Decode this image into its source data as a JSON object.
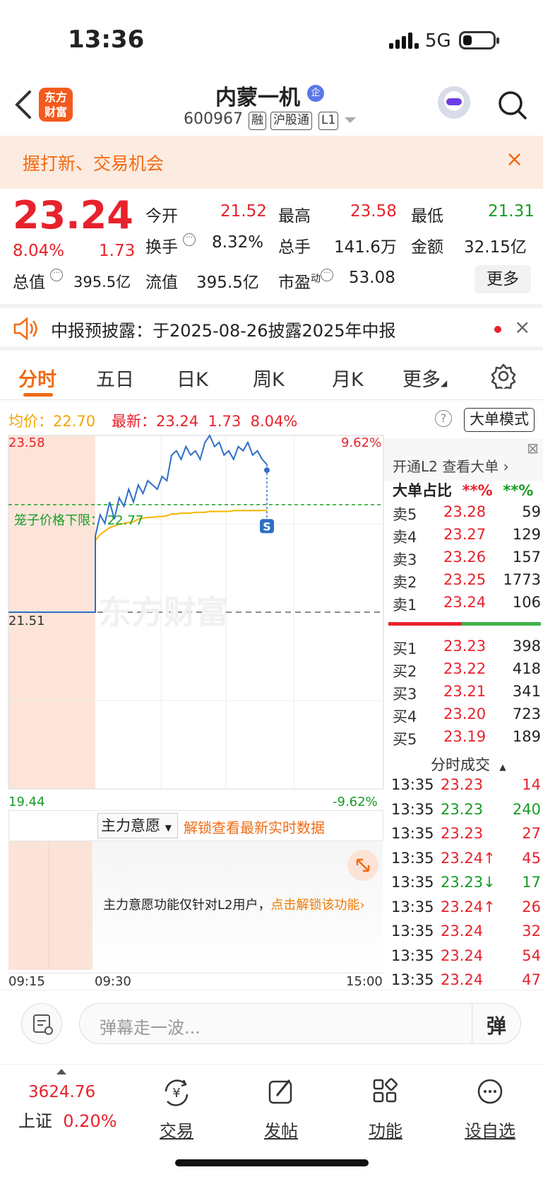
{
  "status_bar": {
    "time": "13:36",
    "network": "5G"
  },
  "header": {
    "logo_line1": "东方",
    "logo_line2": "财富",
    "stock_name": "内蒙一机",
    "badge": "企",
    "stock_code": "600967",
    "tags": [
      "融",
      "沪股通",
      "L1"
    ]
  },
  "banner": {
    "text": "握打新、交易机会",
    "close": "×"
  },
  "quote": {
    "price": "23.24",
    "change_pct": "8.04%",
    "change": "1.73",
    "open_label": "今开",
    "open": "21.52",
    "high_label": "最高",
    "high": "23.58",
    "low_label": "最低",
    "low": "21.31",
    "turnover_label": "换手",
    "turnover": "8.32%",
    "volume_label": "总手",
    "volume": "141.6万",
    "amount_label": "金额",
    "amount": "32.15亿",
    "mktcap_label": "总值",
    "mktcap": "395.5亿",
    "float_label": "流值",
    "float": "395.5亿",
    "pe_label": "市盈",
    "pe_sup": "动",
    "pe": "53.08",
    "more": "更多"
  },
  "notice": {
    "text": "中报预披露：于2025-08-26披露2025年中报",
    "close": "×"
  },
  "tabs": [
    "分时",
    "五日",
    "日K",
    "周K",
    "月K",
    "更多"
  ],
  "avg_bar": {
    "avg_label": "均价：",
    "avg": "22.70",
    "latest_label": "最新：",
    "latest": "23.24",
    "chg": "1.73",
    "pct": "8.04%",
    "mode_btn": "大单模式",
    "help": "?"
  },
  "chart_data": {
    "type": "line",
    "ylim": [
      19.44,
      23.58
    ],
    "ymax_label": "23.58",
    "ymin_label": "19.44",
    "pct_max": "9.62%",
    "pct_min": "-9.62%",
    "prev_close_label": "21.51",
    "cage_label": "笼子价格下限：",
    "cage_value": "22.77",
    "xticks": [
      "09:15",
      "09:30",
      "15:00"
    ],
    "price_series": [
      21.51,
      21.51,
      21.51,
      21.51,
      22.4,
      22.65,
      22.55,
      22.8,
      22.6,
      22.85,
      22.75,
      22.95,
      22.8,
      23.0,
      22.9,
      23.05,
      23.0,
      22.95,
      23.1,
      23.05,
      23.35,
      23.4,
      23.3,
      23.45,
      23.35,
      23.4,
      23.3,
      23.5,
      23.58,
      23.45,
      23.5,
      23.35,
      23.4,
      23.3,
      23.45,
      23.4,
      23.5,
      23.35,
      23.4,
      23.3,
      23.24
    ],
    "avg_series": [
      21.51,
      21.51,
      21.51,
      21.51,
      22.35,
      22.42,
      22.46,
      22.5,
      22.52,
      22.54,
      22.55,
      22.56,
      22.57,
      22.6,
      22.61,
      22.62,
      22.62,
      22.63,
      22.63,
      22.64,
      22.66,
      22.66,
      22.67,
      22.67,
      22.67,
      22.68,
      22.68,
      22.68,
      22.69,
      22.69,
      22.69,
      22.69,
      22.69,
      22.7,
      22.7,
      22.7,
      22.7,
      22.7,
      22.7,
      22.7,
      22.7
    ],
    "marker": "S"
  },
  "sub_chart": {
    "selector": "主力意愿",
    "unlock": "解锁查看最新实时数据",
    "lock_text": "主力意愿功能仅针对L2用户，",
    "lock_link": "点击解锁该功能"
  },
  "order_panel": {
    "l2_link": "开通L2 查看大单",
    "ratio_label": "大单占比",
    "ratio_a": "**%",
    "ratio_b": "**%",
    "asks": [
      {
        "l": "卖5",
        "p": "23.28",
        "v": "59"
      },
      {
        "l": "卖4",
        "p": "23.27",
        "v": "129"
      },
      {
        "l": "卖3",
        "p": "23.26",
        "v": "157"
      },
      {
        "l": "卖2",
        "p": "23.25",
        "v": "1773"
      },
      {
        "l": "卖1",
        "p": "23.24",
        "v": "106"
      }
    ],
    "bids": [
      {
        "l": "买1",
        "p": "23.23",
        "v": "398"
      },
      {
        "l": "买2",
        "p": "23.22",
        "v": "418"
      },
      {
        "l": "买3",
        "p": "23.21",
        "v": "341"
      },
      {
        "l": "买4",
        "p": "23.20",
        "v": "723"
      },
      {
        "l": "买5",
        "p": "23.19",
        "v": "189"
      }
    ],
    "trades_label": "分时成交",
    "trades": [
      {
        "t": "13:35",
        "p": "23.23",
        "v": "14",
        "c": "red"
      },
      {
        "t": "13:35",
        "p": "23.23",
        "v": "240",
        "c": "green"
      },
      {
        "t": "13:35",
        "p": "23.23",
        "v": "27",
        "c": "red"
      },
      {
        "t": "13:35",
        "p": "23.24↑",
        "v": "45",
        "c": "red"
      },
      {
        "t": "13:35",
        "p": "23.23↓",
        "v": "17",
        "c": "green"
      },
      {
        "t": "13:35",
        "p": "23.24↑",
        "v": "26",
        "c": "red"
      },
      {
        "t": "13:35",
        "p": "23.24",
        "v": "32",
        "c": "red"
      },
      {
        "t": "13:35",
        "p": "23.24",
        "v": "54",
        "c": "red"
      },
      {
        "t": "13:35",
        "p": "23.24",
        "v": "47",
        "c": "red"
      }
    ]
  },
  "comment": {
    "placeholder": "弹幕走一波...",
    "dan": "弹"
  },
  "nav": {
    "index_value": "3624.76",
    "index_name": "上证",
    "index_pct": "0.20%",
    "items": [
      "交易",
      "发帖",
      "功能",
      "设自选"
    ]
  },
  "colors": {
    "up": "#e8222c",
    "down": "#169c24",
    "accent": "#f06b15",
    "price_line": "#2d6fc7",
    "avg_line": "#f5b500"
  }
}
